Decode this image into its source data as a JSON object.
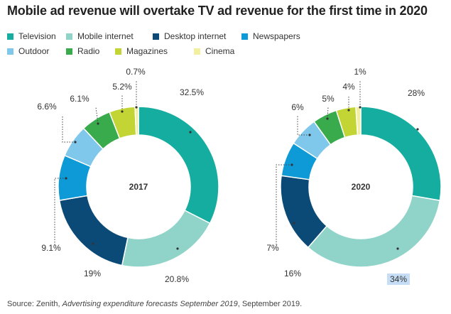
{
  "title": "Mobile ad revenue will overtake TV ad revenue for the first time in 2020",
  "legend": [
    {
      "label": "Television",
      "color": "#14ada0"
    },
    {
      "label": "Mobile internet",
      "color": "#8fd3c9"
    },
    {
      "label": "Desktop internet",
      "color": "#0b4a77"
    },
    {
      "label": "Newspapers",
      "color": "#0d9ad6"
    },
    {
      "label": "Outdoor",
      "color": "#7fc7eb"
    },
    {
      "label": "Radio",
      "color": "#3aab4c"
    },
    {
      "label": "Magazines",
      "color": "#c2d534"
    },
    {
      "label": "Cinema",
      "color": "#f2f0a0"
    }
  ],
  "chart_data": [
    {
      "type": "pie",
      "title": "2017",
      "categories": [
        "Television",
        "Mobile internet",
        "Desktop internet",
        "Newspapers",
        "Outdoor",
        "Radio",
        "Magazines",
        "Cinema"
      ],
      "values": [
        32.5,
        20.8,
        19,
        9.1,
        6.6,
        6.1,
        5.2,
        0.7
      ],
      "labels": [
        "32.5%",
        "20.8%",
        "19%",
        "9.1%",
        "6.6%",
        "6.1%",
        "5.2%",
        "0.7%"
      ]
    },
    {
      "type": "pie",
      "title": "2020",
      "categories": [
        "Television",
        "Mobile internet",
        "Desktop internet",
        "Newspapers",
        "Outdoor",
        "Radio",
        "Magazines",
        "Cinema"
      ],
      "values": [
        28,
        34,
        16,
        7,
        6,
        5,
        4,
        1
      ],
      "labels": [
        "28%",
        "34%",
        "16%",
        "7%",
        "6%",
        "5%",
        "4%",
        "1%"
      ]
    }
  ],
  "source": {
    "prefix": "Source: Zenith, ",
    "italic": "Advertising expenditure forecasts September 2019",
    "suffix": ", September 2019."
  }
}
